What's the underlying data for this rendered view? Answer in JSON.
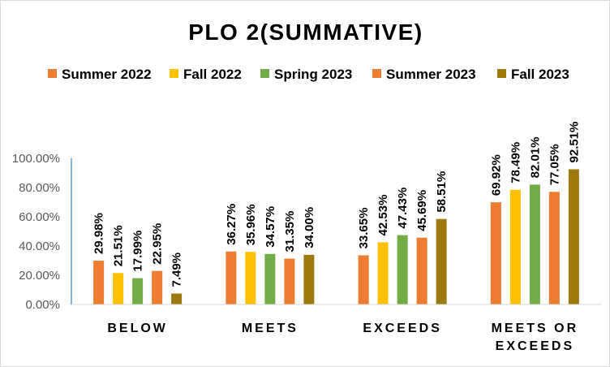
{
  "chart_data": {
    "type": "bar",
    "title": "PLO 2(SUMMATIVE)",
    "categories": [
      [
        "BELOW"
      ],
      [
        "MEETS"
      ],
      [
        "EXCEEDS"
      ],
      [
        "MEETS OR",
        "EXCEEDS"
      ]
    ],
    "series": [
      {
        "name": "Summer 2022",
        "color": "#ED7D31",
        "values": [
          29.98,
          36.27,
          33.65,
          69.92
        ],
        "labels": [
          "29.98%",
          "36.27%",
          "33.65%",
          "69.92%"
        ]
      },
      {
        "name": "Fall 2022",
        "color": "#FFC000",
        "values": [
          21.51,
          35.96,
          42.53,
          78.49
        ],
        "labels": [
          "21.51%",
          "35.96%",
          "42.53%",
          "78.49%"
        ]
      },
      {
        "name": "Spring 2023",
        "color": "#70AD47",
        "values": [
          17.99,
          34.57,
          47.43,
          82.01
        ],
        "labels": [
          "17.99%",
          "34.57%",
          "47.43%",
          "82.01%"
        ]
      },
      {
        "name": "Summer 2023",
        "color": "#ED7D31",
        "values": [
          22.95,
          31.35,
          45.69,
          77.05
        ],
        "labels": [
          "22.95%",
          "31.35%",
          "45.69%",
          "77.05%"
        ]
      },
      {
        "name": "Fall 2023",
        "color": "#9C7A0E",
        "values": [
          7.49,
          34.0,
          58.51,
          92.51
        ],
        "labels": [
          "7.49%",
          "34.00%",
          "58.51%",
          "92.51%"
        ]
      }
    ],
    "ylim": [
      0,
      100
    ],
    "yticks": [
      "0.00%",
      "20.00%",
      "40.00%",
      "60.00%",
      "80.00%",
      "100.00%"
    ],
    "grid": false,
    "legend_position": "top"
  }
}
